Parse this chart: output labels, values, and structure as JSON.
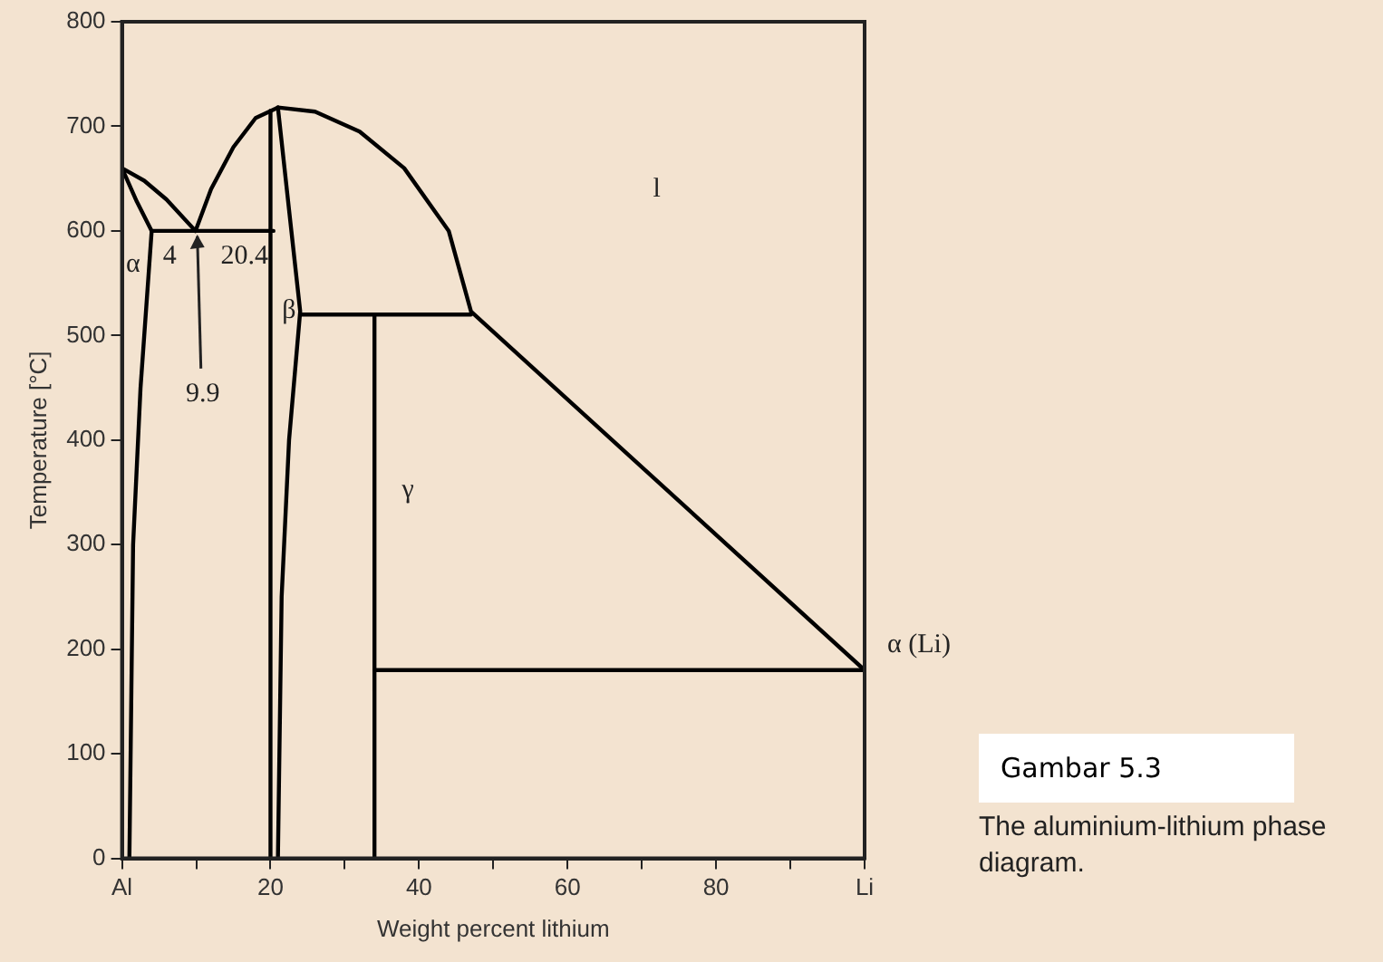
{
  "chart_data": {
    "type": "line",
    "xlabel": "Weight percent lithium",
    "ylabel": "Temperature [°C]",
    "xlim": [
      0,
      100
    ],
    "ylim": [
      0,
      800
    ],
    "xticks": [
      {
        "value": 0,
        "label": "Al"
      },
      {
        "value": 10,
        "label": null
      },
      20,
      {
        "value": 30,
        "label": null
      },
      40,
      {
        "value": 50,
        "label": null
      },
      60,
      {
        "value": 70,
        "label": null
      },
      80,
      {
        "value": 90,
        "label": null
      },
      {
        "value": 100,
        "label": "Li"
      }
    ],
    "yticks": [
      0,
      100,
      200,
      300,
      400,
      500,
      600,
      700,
      800
    ],
    "grid": false,
    "legend": false,
    "marker": "none",
    "line_style": "solid",
    "series": [
      {
        "color": "#000000",
        "x": [
          0,
          3,
          6,
          9.9
        ],
        "values": [
          660,
          648,
          630,
          600
        ]
      },
      {
        "color": "#000000",
        "x": [
          0,
          2,
          4
        ],
        "values": [
          660,
          628,
          600
        ]
      },
      {
        "color": "#000000",
        "x": [
          4,
          2.5,
          1.5,
          1
        ],
        "values": [
          600,
          450,
          300,
          0
        ]
      },
      {
        "color": "#000000",
        "x": [
          4,
          20.4
        ],
        "values": [
          600,
          600
        ]
      },
      {
        "color": "#000000",
        "x": [
          9.9,
          12,
          15,
          18,
          21
        ],
        "values": [
          600,
          640,
          680,
          708,
          718
        ]
      },
      {
        "color": "#000000",
        "x": [
          21,
          26,
          32,
          38,
          44,
          47,
          100
        ],
        "values": [
          718,
          714,
          695,
          660,
          600,
          523,
          180
        ]
      },
      {
        "color": "#000000",
        "x": [
          20,
          20
        ],
        "values": [
          715,
          0
        ]
      },
      {
        "color": "#000000",
        "x": [
          21,
          22.5,
          24,
          22.5,
          21.5,
          21
        ],
        "values": [
          718,
          620,
          523,
          400,
          250,
          0
        ]
      },
      {
        "color": "#000000",
        "x": [
          24,
          47
        ],
        "values": [
          520,
          520
        ]
      },
      {
        "color": "#000000",
        "x": [
          34,
          34
        ],
        "values": [
          520,
          0
        ]
      },
      {
        "color": "#000000",
        "x": [
          34,
          100
        ],
        "values": [
          180,
          180
        ]
      }
    ],
    "annotations": [
      "α",
      {
        "text": "4",
        "x": 4,
        "y": 600
      },
      {
        "text": "20.4",
        "x": 20.4,
        "y": 600
      },
      {
        "text": "9.9",
        "x": 9.9,
        "y": 600
      },
      "β",
      "γ",
      "l",
      {
        "text": "α (Li)",
        "x": 100,
        "y": 180
      },
      "Gambar 5.3",
      "The aluminium-lithium phase diagram."
    ]
  }
}
